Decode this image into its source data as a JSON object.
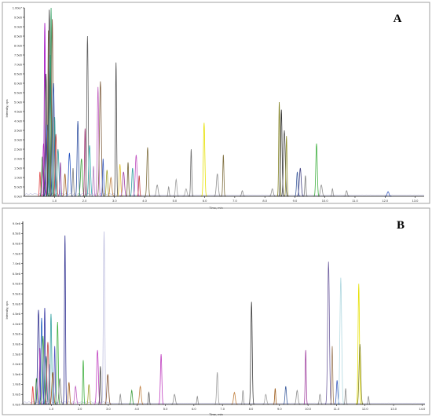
{
  "chart_data": [
    {
      "type": "line",
      "panel_label": "A",
      "xlabel": "Time, min",
      "ylabel": "Intensity, cps",
      "xlim": [
        0.0,
        13.3
      ],
      "ylim": [
        0,
        10000000
      ],
      "x_ticks": [
        "1.0",
        "2.0",
        "3.0",
        "4.0",
        "5.0",
        "6.0",
        "7.0",
        "8.0",
        "9.0",
        "10.0",
        "11.0",
        "12.0",
        "13.0"
      ],
      "y_ticks": [
        "0.0e0",
        "5.0e5",
        "1.0e6",
        "1.5e6",
        "2.0e6",
        "2.5e6",
        "3.0e6",
        "3.5e6",
        "4.0e6",
        "4.5e6",
        "5.0e6",
        "5.5e6",
        "6.0e6",
        "6.5e6",
        "7.0e6",
        "7.5e6",
        "8.0e6",
        "8.5e6",
        "9.0e6",
        "9.5e6",
        "1.00e7"
      ],
      "grid": false,
      "legend": "none",
      "peaks": [
        {
          "x": 0.52,
          "y": 1300000,
          "color": "#e04040"
        },
        {
          "x": 0.6,
          "y": 2100000,
          "color": "#2a8a2a"
        },
        {
          "x": 0.64,
          "y": 2800000,
          "color": "#c040c0"
        },
        {
          "x": 0.68,
          "y": 9200000,
          "color": "#a000c0"
        },
        {
          "x": 0.72,
          "y": 6500000,
          "color": "#303030"
        },
        {
          "x": 0.76,
          "y": 3800000,
          "color": "#2060c0"
        },
        {
          "x": 0.8,
          "y": 8800000,
          "color": "#706030"
        },
        {
          "x": 0.83,
          "y": 9900000,
          "color": "#404040"
        },
        {
          "x": 0.86,
          "y": 7500000,
          "color": "#208080"
        },
        {
          "x": 0.89,
          "y": 10000000,
          "color": "#30a060"
        },
        {
          "x": 0.93,
          "y": 9400000,
          "color": "#806040"
        },
        {
          "x": 0.97,
          "y": 6000000,
          "color": "#3050b0"
        },
        {
          "x": 1.01,
          "y": 4200000,
          "color": "#309090"
        },
        {
          "x": 1.05,
          "y": 3300000,
          "color": "#c04040"
        },
        {
          "x": 1.12,
          "y": 2500000,
          "color": "#30a0a0"
        },
        {
          "x": 1.2,
          "y": 1800000,
          "color": "#9040a0"
        },
        {
          "x": 1.35,
          "y": 1200000,
          "color": "#a06020"
        },
        {
          "x": 1.5,
          "y": 2300000,
          "color": "#2050c0"
        },
        {
          "x": 1.62,
          "y": 1500000,
          "color": "#808080"
        },
        {
          "x": 1.78,
          "y": 4000000,
          "color": "#3050a0"
        },
        {
          "x": 1.9,
          "y": 2000000,
          "color": "#40a040"
        },
        {
          "x": 2.02,
          "y": 3600000,
          "color": "#a03070"
        },
        {
          "x": 2.1,
          "y": 8500000,
          "color": "#606060"
        },
        {
          "x": 2.17,
          "y": 2700000,
          "color": "#30b0b0"
        },
        {
          "x": 2.3,
          "y": 1600000,
          "color": "#b080c0"
        },
        {
          "x": 2.45,
          "y": 5800000,
          "color": "#c060c0"
        },
        {
          "x": 2.53,
          "y": 6100000,
          "color": "#806040"
        },
        {
          "x": 2.62,
          "y": 2000000,
          "color": "#4060c0"
        },
        {
          "x": 2.75,
          "y": 1400000,
          "color": "#a0a030"
        },
        {
          "x": 2.88,
          "y": 1000000,
          "color": "#c08040"
        },
        {
          "x": 3.05,
          "y": 7100000,
          "color": "#505050"
        },
        {
          "x": 3.18,
          "y": 1700000,
          "color": "#e0c030"
        },
        {
          "x": 3.3,
          "y": 1300000,
          "color": "#a040a0"
        },
        {
          "x": 3.45,
          "y": 1800000,
          "color": "#706030"
        },
        {
          "x": 3.6,
          "y": 1500000,
          "color": "#30a0a0"
        },
        {
          "x": 3.72,
          "y": 2200000,
          "color": "#c050c0"
        },
        {
          "x": 3.82,
          "y": 1100000,
          "color": "#c04040"
        },
        {
          "x": 4.1,
          "y": 2600000,
          "color": "#807040"
        },
        {
          "x": 4.42,
          "y": 600000,
          "color": "#909090"
        },
        {
          "x": 4.8,
          "y": 500000,
          "color": "#909090"
        },
        {
          "x": 5.05,
          "y": 900000,
          "color": "#a0a0a0"
        },
        {
          "x": 5.38,
          "y": 400000,
          "color": "#a0a0a0"
        },
        {
          "x": 5.55,
          "y": 2500000,
          "color": "#707070"
        },
        {
          "x": 5.98,
          "y": 3900000,
          "color": "#e6e000"
        },
        {
          "x": 6.42,
          "y": 1200000,
          "color": "#909090"
        },
        {
          "x": 6.62,
          "y": 2200000,
          "color": "#807040"
        },
        {
          "x": 7.25,
          "y": 300000,
          "color": "#909090"
        },
        {
          "x": 8.25,
          "y": 400000,
          "color": "#909090"
        },
        {
          "x": 8.48,
          "y": 5000000,
          "color": "#808020"
        },
        {
          "x": 8.55,
          "y": 4600000,
          "color": "#303030"
        },
        {
          "x": 8.65,
          "y": 3500000,
          "color": "#505050"
        },
        {
          "x": 8.72,
          "y": 3200000,
          "color": "#909030"
        },
        {
          "x": 9.08,
          "y": 1300000,
          "color": "#4060a0"
        },
        {
          "x": 9.18,
          "y": 1500000,
          "color": "#404080"
        },
        {
          "x": 9.35,
          "y": 1100000,
          "color": "#808080"
        },
        {
          "x": 9.72,
          "y": 2800000,
          "color": "#40b040"
        },
        {
          "x": 9.88,
          "y": 600000,
          "color": "#909090"
        },
        {
          "x": 10.25,
          "y": 400000,
          "color": "#909090"
        },
        {
          "x": 10.72,
          "y": 300000,
          "color": "#909090"
        },
        {
          "x": 12.1,
          "y": 250000,
          "color": "#4060c0"
        }
      ]
    },
    {
      "type": "line",
      "panel_label": "B",
      "xlabel": "Time, min",
      "ylabel": "Intensity, cps",
      "xlim": [
        0.0,
        14.1
      ],
      "ylim": [
        0,
        9100000
      ],
      "x_ticks": [
        "1.0",
        "2.0",
        "3.0",
        "4.0",
        "5.0",
        "6.0",
        "7.0",
        "8.0",
        "9.0",
        "10.0",
        "11.0",
        "12.0",
        "13.0",
        "14.0"
      ],
      "y_ticks": [
        "0.0e0",
        "5.0e5",
        "1.0e6",
        "1.5e6",
        "2.0e6",
        "2.5e6",
        "3.0e6",
        "3.5e6",
        "4.0e6",
        "4.5e6",
        "5.0e6",
        "5.5e6",
        "6.0e6",
        "6.5e6",
        "7.0e6",
        "7.5e6",
        "8.0e6",
        "8.5e6",
        "9.0e6"
      ],
      "grid": false,
      "legend": "none",
      "peaks": [
        {
          "x": 0.35,
          "y": 900000,
          "color": "#e04040"
        },
        {
          "x": 0.48,
          "y": 1300000,
          "color": "#2a8a2a"
        },
        {
          "x": 0.55,
          "y": 4700000,
          "color": "#303090"
        },
        {
          "x": 0.6,
          "y": 2800000,
          "color": "#c040c0"
        },
        {
          "x": 0.66,
          "y": 4300000,
          "color": "#2060c0"
        },
        {
          "x": 0.71,
          "y": 3400000,
          "color": "#40a040"
        },
        {
          "x": 0.77,
          "y": 4800000,
          "color": "#3030a0"
        },
        {
          "x": 0.82,
          "y": 2400000,
          "color": "#208080"
        },
        {
          "x": 0.88,
          "y": 3100000,
          "color": "#c04040"
        },
        {
          "x": 0.93,
          "y": 2000000,
          "color": "#b080c0"
        },
        {
          "x": 0.99,
          "y": 4500000,
          "color": "#30a0a0"
        },
        {
          "x": 1.05,
          "y": 1600000,
          "color": "#a06020"
        },
        {
          "x": 1.12,
          "y": 2900000,
          "color": "#5050c0"
        },
        {
          "x": 1.22,
          "y": 4100000,
          "color": "#40b040"
        },
        {
          "x": 1.3,
          "y": 1300000,
          "color": "#707070"
        },
        {
          "x": 1.48,
          "y": 8400000,
          "color": "#303090"
        },
        {
          "x": 1.62,
          "y": 1100000,
          "color": "#a06020"
        },
        {
          "x": 1.85,
          "y": 900000,
          "color": "#c060c0"
        },
        {
          "x": 2.12,
          "y": 2200000,
          "color": "#40b040"
        },
        {
          "x": 2.32,
          "y": 1000000,
          "color": "#a0a030"
        },
        {
          "x": 2.62,
          "y": 2700000,
          "color": "#c040c0"
        },
        {
          "x": 2.72,
          "y": 1900000,
          "color": "#505050"
        },
        {
          "x": 2.85,
          "y": 8600000,
          "color": "#c0c0e0"
        },
        {
          "x": 2.98,
          "y": 1500000,
          "color": "#805030"
        },
        {
          "x": 3.42,
          "y": 500000,
          "color": "#909090"
        },
        {
          "x": 3.82,
          "y": 700000,
          "color": "#40a040"
        },
        {
          "x": 4.12,
          "y": 900000,
          "color": "#c08040"
        },
        {
          "x": 4.42,
          "y": 600000,
          "color": "#606060"
        },
        {
          "x": 4.85,
          "y": 2500000,
          "color": "#c040c0"
        },
        {
          "x": 5.32,
          "y": 500000,
          "color": "#909090"
        },
        {
          "x": 6.12,
          "y": 400000,
          "color": "#909090"
        },
        {
          "x": 6.82,
          "y": 1600000,
          "color": "#a0a0a0"
        },
        {
          "x": 7.42,
          "y": 600000,
          "color": "#c08040"
        },
        {
          "x": 7.72,
          "y": 700000,
          "color": "#909090"
        },
        {
          "x": 8.02,
          "y": 5100000,
          "color": "#404040"
        },
        {
          "x": 8.52,
          "y": 500000,
          "color": "#a0a0a0"
        },
        {
          "x": 8.85,
          "y": 800000,
          "color": "#a06020"
        },
        {
          "x": 9.22,
          "y": 900000,
          "color": "#4060a0"
        },
        {
          "x": 9.62,
          "y": 700000,
          "color": "#909090"
        },
        {
          "x": 9.92,
          "y": 2700000,
          "color": "#a040a0"
        },
        {
          "x": 10.42,
          "y": 500000,
          "color": "#909090"
        },
        {
          "x": 10.72,
          "y": 7100000,
          "color": "#7060a0"
        },
        {
          "x": 10.85,
          "y": 2900000,
          "color": "#a08060"
        },
        {
          "x": 11.02,
          "y": 1200000,
          "color": "#4060c0"
        },
        {
          "x": 11.15,
          "y": 6300000,
          "color": "#b0d8e0"
        },
        {
          "x": 11.32,
          "y": 800000,
          "color": "#909090"
        },
        {
          "x": 11.78,
          "y": 6000000,
          "color": "#e6e000"
        },
        {
          "x": 11.82,
          "y": 3000000,
          "color": "#808020"
        },
        {
          "x": 12.12,
          "y": 400000,
          "color": "#909090"
        }
      ]
    }
  ]
}
